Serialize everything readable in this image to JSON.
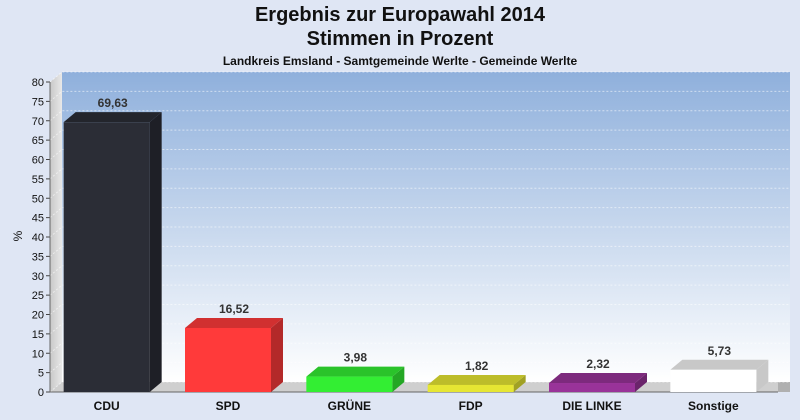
{
  "chart_data": {
    "type": "bar",
    "title": "Ergebnis zur Europawahl 2014",
    "subtitle": "Stimmen in Prozent",
    "caption": "Landkreis Emsland - Samtgemeinde Werlte - Gemeinde Werlte",
    "ylabel": "%",
    "ylim": [
      0,
      80
    ],
    "yticks": [
      0,
      5,
      10,
      15,
      20,
      25,
      30,
      35,
      40,
      45,
      50,
      55,
      60,
      65,
      70,
      75,
      80
    ],
    "categories": [
      "CDU",
      "SPD",
      "GRÜNE",
      "FDP",
      "DIE LINKE",
      "Sonstige"
    ],
    "values": [
      69.63,
      16.52,
      3.98,
      1.82,
      2.32,
      5.73
    ],
    "value_labels": [
      "69,63",
      "16,52",
      "3,98",
      "1,82",
      "2,32",
      "5,73"
    ],
    "colors": [
      "#2b2d36",
      "#ff3a3a",
      "#33ee33",
      "#e6e633",
      "#993399",
      "#ffffff"
    ],
    "grid": true
  }
}
